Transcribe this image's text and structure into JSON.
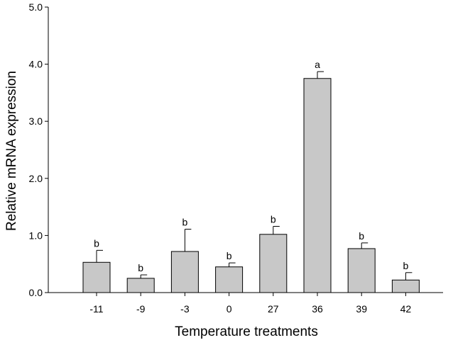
{
  "chart_data": {
    "type": "bar",
    "title": "",
    "xlabel": "Temperature treatments",
    "ylabel": "Relative mRNA expression",
    "ylim": [
      0,
      5
    ],
    "yticks": [
      "0.0",
      "1.0",
      "2.0",
      "3.0",
      "4.0",
      "5.0"
    ],
    "grid": false,
    "categories": [
      "-11",
      "-9",
      "-3",
      "0",
      "27",
      "36",
      "39",
      "42"
    ],
    "values": [
      0.53,
      0.25,
      0.72,
      0.45,
      1.02,
      3.75,
      0.77,
      0.22
    ],
    "errors": [
      0.21,
      0.06,
      0.39,
      0.07,
      0.14,
      0.12,
      0.1,
      0.13
    ],
    "significance": [
      "b",
      "b",
      "b",
      "b",
      "b",
      "a",
      "b",
      "b"
    ],
    "bar_color": "#c8c8c8",
    "edge_color": "#000000"
  }
}
